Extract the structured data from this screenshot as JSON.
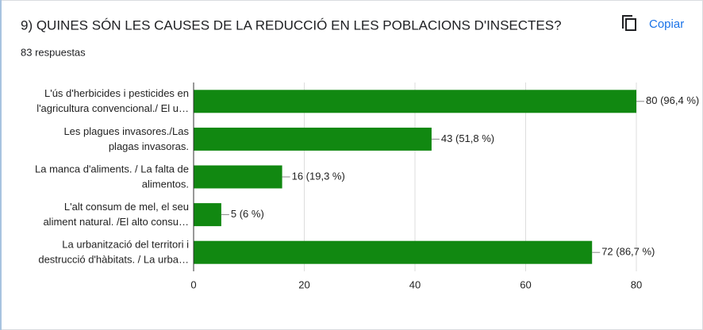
{
  "header": {
    "title": "9) QUINES SÓN LES CAUSES DE LA REDUCCIÓ EN LES POBLACIONS D'INSECTES?",
    "subtitle": "83 respuestas",
    "copy_button": "Copiar"
  },
  "chart_data": {
    "type": "hbar",
    "categories": [
      [
        "L'ús d'herbicides i pesticides en",
        "l'agricultura convencional./ El u…"
      ],
      [
        "Les plagues invasores./Las",
        "plagas invasoras."
      ],
      [
        "La manca d'aliments. / La falta de",
        "alimentos."
      ],
      [
        "L'alt consum de mel, el seu",
        "aliment natural. /El alto consu…"
      ],
      [
        "La urbanització del territori i",
        "destrucció d'hàbitats. / La urba…"
      ]
    ],
    "values": [
      80,
      43,
      16,
      5,
      72
    ],
    "value_labels": [
      "80 (96,4 %)",
      "43 (51,8 %)",
      "16 (19,3 %)",
      "5 (6 %)",
      "72 (86,7 %)"
    ],
    "color": "#118811",
    "xlim": [
      0,
      80
    ],
    "xticks": [
      0,
      20,
      40,
      60,
      80
    ],
    "grid": true
  }
}
